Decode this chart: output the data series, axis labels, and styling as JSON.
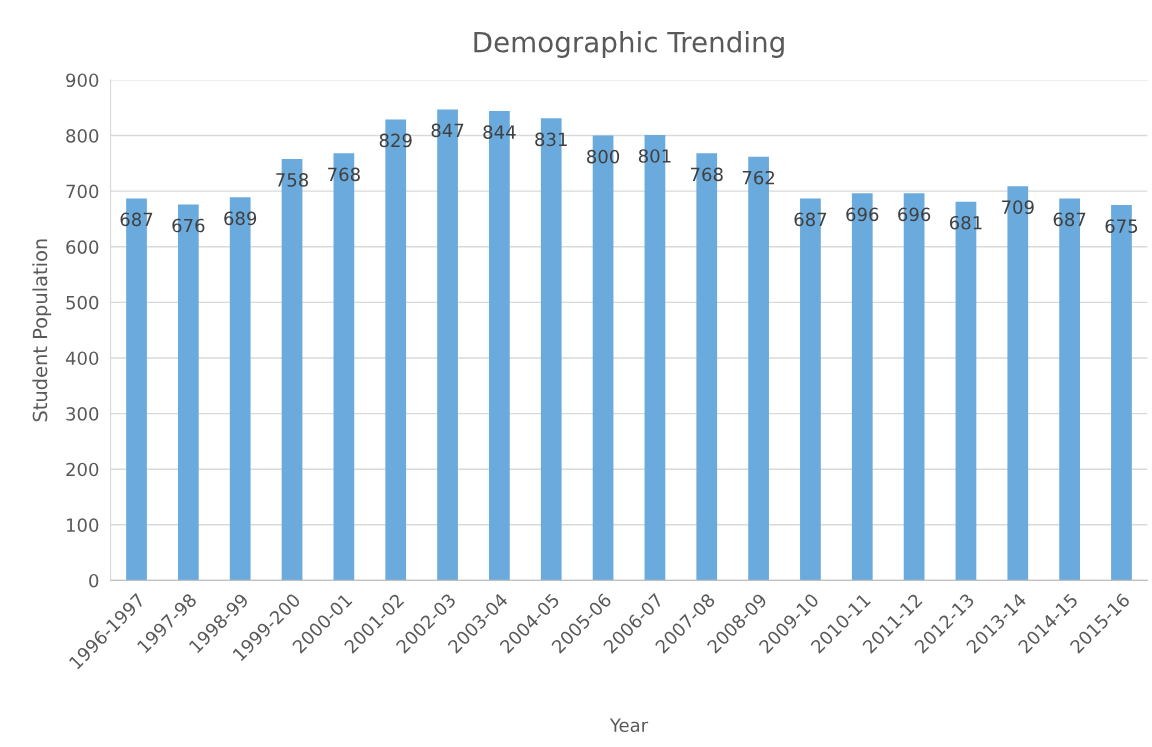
{
  "chart_data": {
    "type": "bar",
    "title": "Demographic Trending",
    "xlabel": "Year",
    "ylabel": "Student Population",
    "categories": [
      "1996-1997",
      "1997-98",
      "1998-99",
      "1999-200",
      "2000-01",
      "2001-02",
      "2002-03",
      "2003-04",
      "2004-05",
      "2005-06",
      "2006-07",
      "2007-08",
      "2008-09",
      "2009-10",
      "2010-11",
      "2011-12",
      "2012-13",
      "2013-14",
      "2014-15",
      "2015-16"
    ],
    "values": [
      687,
      676,
      689,
      758,
      768,
      829,
      847,
      844,
      831,
      800,
      801,
      768,
      762,
      687,
      696,
      696,
      681,
      709,
      687,
      675
    ],
    "color": "#6aaadc",
    "ylim": [
      0,
      900
    ],
    "yticks": [
      0,
      100,
      200,
      300,
      400,
      500,
      600,
      700,
      800,
      900
    ],
    "grid": "y",
    "data_labels": true,
    "legend": false
  }
}
